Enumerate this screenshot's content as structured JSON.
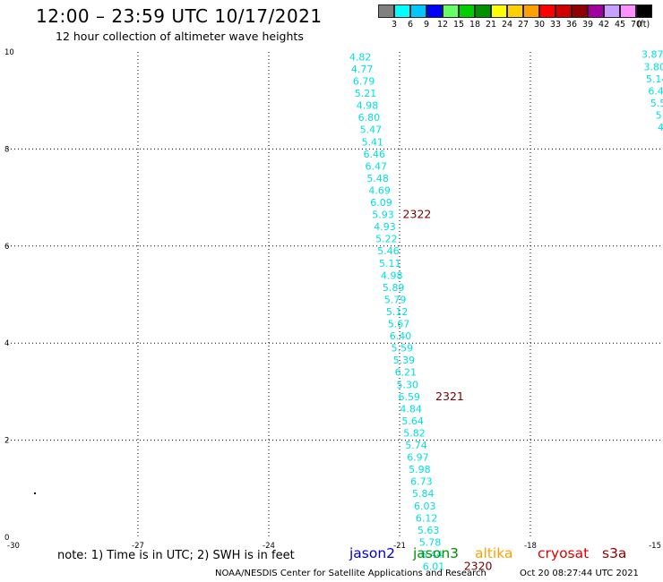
{
  "header": {
    "title": "12:00 – 23:59 UTC 10/17/2021",
    "subtitle": "12 hour collection of altimeter wave heights"
  },
  "colorbar": {
    "colors": [
      "#808080",
      "#00ffff",
      "#00c8ff",
      "#0000ff",
      "#64ff64",
      "#00d000",
      "#009000",
      "#ffff00",
      "#ffd000",
      "#ffa000",
      "#ff0000",
      "#d00000",
      "#900000",
      "#a000a0",
      "#c8a0ff",
      "#ff90ff",
      "#000000"
    ],
    "labels": [
      "3",
      "6",
      "9",
      "12",
      "15",
      "18",
      "21",
      "24",
      "27",
      "30",
      "33",
      "36",
      "39",
      "42",
      "45",
      "70",
      "(ft)"
    ]
  },
  "chart_data": {
    "type": "scatter",
    "xlim": [
      -30,
      -15
    ],
    "ylim": [
      0,
      10
    ],
    "x_ticks": [
      "-30",
      "-27",
      "-24",
      "-21",
      "-18",
      "-15"
    ],
    "y_ticks": [
      "0",
      "2",
      "4",
      "6",
      "8",
      "10"
    ],
    "grid": true,
    "tracks": [
      {
        "points": [
          {
            "x": -21.9,
            "y": 9.9,
            "label": "4.82"
          },
          {
            "x": -21.86,
            "y": 9.65,
            "label": "4.77"
          },
          {
            "x": -21.82,
            "y": 9.4,
            "label": "6.79"
          },
          {
            "x": -21.78,
            "y": 9.15,
            "label": "5.21"
          },
          {
            "x": -21.74,
            "y": 8.9,
            "label": "4.98"
          },
          {
            "x": -21.7,
            "y": 8.65,
            "label": "6.80"
          },
          {
            "x": -21.66,
            "y": 8.4,
            "label": "5.47"
          },
          {
            "x": -21.62,
            "y": 8.15,
            "label": "5.41"
          },
          {
            "x": -21.58,
            "y": 7.9,
            "label": "6.46"
          },
          {
            "x": -21.54,
            "y": 7.65,
            "label": "6.47"
          },
          {
            "x": -21.5,
            "y": 7.4,
            "label": "5.48"
          },
          {
            "x": -21.46,
            "y": 7.15,
            "label": "4.69"
          },
          {
            "x": -21.42,
            "y": 6.9,
            "label": "6.09"
          },
          {
            "x": -21.38,
            "y": 6.65,
            "label": "5.93"
          },
          {
            "x": -21.34,
            "y": 6.4,
            "label": "4.93"
          },
          {
            "x": -21.3,
            "y": 6.15,
            "label": "5.22"
          },
          {
            "x": -21.26,
            "y": 5.9,
            "label": "5.46"
          },
          {
            "x": -21.22,
            "y": 5.65,
            "label": "5.11"
          },
          {
            "x": -21.18,
            "y": 5.4,
            "label": "4.98"
          },
          {
            "x": -21.14,
            "y": 5.15,
            "label": "5.89"
          },
          {
            "x": -21.1,
            "y": 4.9,
            "label": "5.79"
          },
          {
            "x": -21.06,
            "y": 4.65,
            "label": "5.12"
          },
          {
            "x": -21.02,
            "y": 4.4,
            "label": "5.67"
          },
          {
            "x": -20.98,
            "y": 4.15,
            "label": "6.40"
          },
          {
            "x": -20.94,
            "y": 3.9,
            "label": "5.59"
          },
          {
            "x": -20.9,
            "y": 3.65,
            "label": "5.39"
          },
          {
            "x": -20.86,
            "y": 3.4,
            "label": "6.21"
          },
          {
            "x": -20.82,
            "y": 3.15,
            "label": "5.30"
          },
          {
            "x": -20.78,
            "y": 2.9,
            "label": "6.59"
          },
          {
            "x": -20.74,
            "y": 2.65,
            "label": "4.84"
          },
          {
            "x": -20.7,
            "y": 2.4,
            "label": "5.64"
          },
          {
            "x": -20.66,
            "y": 2.15,
            "label": "5.82"
          },
          {
            "x": -20.62,
            "y": 1.9,
            "label": "5.74"
          },
          {
            "x": -20.58,
            "y": 1.65,
            "label": "6.97"
          },
          {
            "x": -20.54,
            "y": 1.4,
            "label": "5.98"
          },
          {
            "x": -20.5,
            "y": 1.15,
            "label": "6.73"
          },
          {
            "x": -20.46,
            "y": 0.9,
            "label": "5.84"
          },
          {
            "x": -20.42,
            "y": 0.65,
            "label": "6.03"
          },
          {
            "x": -20.38,
            "y": 0.4,
            "label": "6.12"
          },
          {
            "x": -20.34,
            "y": 0.15,
            "label": "5.63"
          },
          {
            "x": -20.3,
            "y": -0.1,
            "label": "5.78"
          },
          {
            "x": -20.26,
            "y": -0.35,
            "label": "6.44"
          },
          {
            "x": -20.22,
            "y": -0.6,
            "label": "6.01"
          }
        ]
      },
      {
        "points": [
          {
            "x": -15.2,
            "y": 9.95,
            "label": "3.87"
          },
          {
            "x": -15.15,
            "y": 9.7,
            "label": "3.80"
          },
          {
            "x": -15.1,
            "y": 9.45,
            "label": "5.14"
          },
          {
            "x": -15.05,
            "y": 9.2,
            "label": "6.45"
          },
          {
            "x": -15.0,
            "y": 8.95,
            "label": "5.59"
          },
          {
            "x": -14.95,
            "y": 8.7,
            "label": "5.8"
          },
          {
            "x": -14.9,
            "y": 8.45,
            "label": "4.7"
          },
          {
            "x": -14.85,
            "y": 8.2,
            "label": "5."
          },
          {
            "x": -14.8,
            "y": 7.95,
            "label": "6"
          }
        ]
      }
    ],
    "cycle_labels": [
      {
        "x": -20.6,
        "y": 6.65,
        "label": "2322"
      },
      {
        "x": -19.85,
        "y": 2.9,
        "label": "2321"
      },
      {
        "x": -19.2,
        "y": -0.6,
        "label": "2320"
      }
    ]
  },
  "footer": {
    "note": "note: 1) Time is in UTC; 2) SWH is in feet",
    "satellites": [
      {
        "name": "jason2",
        "color": "#0000d0"
      },
      {
        "name": "jason3",
        "color": "#009000"
      },
      {
        "name": "altika",
        "color": "#ffa000"
      },
      {
        "name": "cryosat",
        "color": "#e00000"
      },
      {
        "name": "s3a",
        "color": "#900000"
      }
    ],
    "credit": "NOAA/NESDIS Center for Satellite Applications and Research",
    "timestamp": "Oct 20 08:27:44 UTC 2021"
  }
}
